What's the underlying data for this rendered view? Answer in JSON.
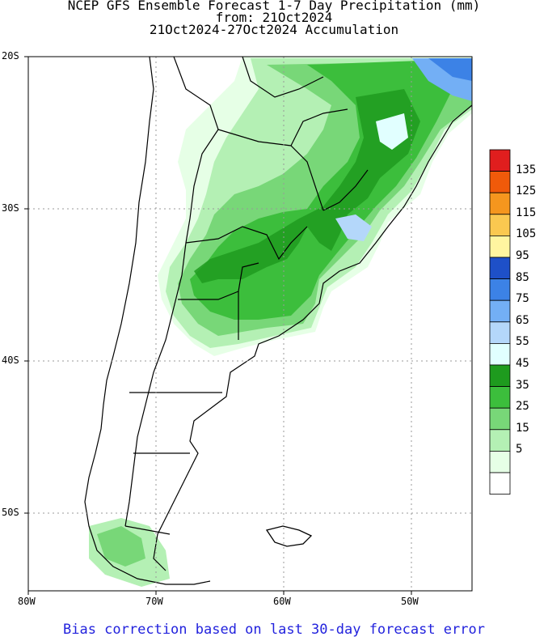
{
  "title": {
    "line1": "NCEP GFS Ensemble Forecast 1-7 Day Precipitation (mm)",
    "line2": "from: 21Oct2024",
    "line3": "21Oct2024-27Oct2024 Accumulation"
  },
  "axes": {
    "lat_labels": [
      "20S",
      "30S",
      "40S",
      "50S"
    ],
    "lon_labels": [
      "80W",
      "70W",
      "60W",
      "50W"
    ]
  },
  "legend": {
    "labels": [
      "135",
      "125",
      "115",
      "105",
      "95",
      "85",
      "75",
      "65",
      "55",
      "45",
      "35",
      "25",
      "15",
      "5"
    ],
    "colors": [
      "#e01e1e",
      "#f05a0a",
      "#f5961e",
      "#fac850",
      "#fff5a0",
      "#1e50c8",
      "#3c82e6",
      "#73aff5",
      "#b4d7fa",
      "#e1ffff",
      "#1e9b1e",
      "#3cbe3c",
      "#78d778",
      "#b4f0b4",
      "#e6ffe6",
      "#ffffff"
    ]
  },
  "footer": "Bias correction based on last 30-day forecast error"
}
